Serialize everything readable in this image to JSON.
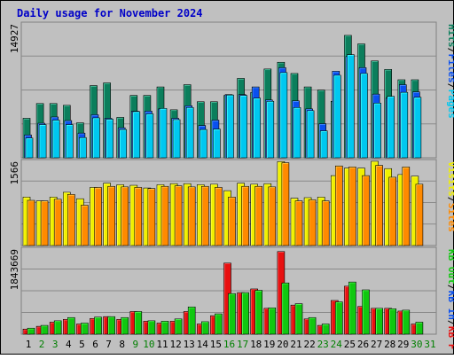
{
  "chart_data": {
    "type": "bar",
    "title": "Daily usage for November 2024",
    "categories": [
      "1",
      "2",
      "3",
      "4",
      "5",
      "6",
      "7",
      "8",
      "9",
      "10",
      "11",
      "12",
      "13",
      "14",
      "15",
      "16",
      "17",
      "18",
      "19",
      "20",
      "21",
      "22",
      "23",
      "24",
      "25",
      "26",
      "27",
      "28",
      "29",
      "30",
      "31"
    ],
    "weekend_days": [
      "2",
      "3",
      "9",
      "10",
      "16",
      "17",
      "23",
      "24",
      "30",
      "31"
    ],
    "panels": [
      {
        "id": "hits-files-pages",
        "max_label": "14927",
        "ymax": 14927,
        "legend": [
          {
            "label": "Pages",
            "color": "#00c8f0"
          },
          {
            "label": "Files",
            "color": "#0a50f0"
          },
          {
            "label": "Hits",
            "color": "#0b7e5c"
          }
        ],
        "series": [
          {
            "name": "Hits",
            "color": "#0b7e5c",
            "values": [
              4400,
              6050,
              6050,
              5850,
              3900,
              8050,
              8350,
              4500,
              6950,
              6950,
              7900,
              5350,
              8150,
              6250,
              6250,
              6950,
              8850,
              7300,
              9900,
              10650,
              9400,
              7900,
              7550,
              6300,
              13650,
              12700,
              10800,
              9850,
              8700,
              8700,
              null
            ]
          },
          {
            "name": "Files",
            "color": "#0a50f0",
            "values": [
              2550,
              3850,
              4550,
              4150,
              2750,
              4800,
              4400,
              3350,
              5200,
              5200,
              5450,
              4400,
              5800,
              3600,
              4200,
              7050,
              7050,
              7900,
              6450,
              10050,
              6350,
              5450,
              3800,
              9650,
              11300,
              10050,
              7100,
              6650,
              8150,
              7350,
              null
            ]
          },
          {
            "name": "Pages",
            "color": "#00c8f0",
            "values": [
              2200,
              3700,
              4200,
              3700,
              2250,
              4450,
              4300,
              3150,
              5150,
              4900,
              5500,
              4250,
              5600,
              3150,
              3200,
              7000,
              6950,
              6650,
              6300,
              9500,
              5600,
              5250,
              3000,
              9200,
              11500,
              9400,
              6100,
              6850,
              7300,
              6750,
              null
            ]
          }
        ]
      },
      {
        "id": "sites-visits",
        "max_label": "1566",
        "ymax": 1566,
        "legend": [
          {
            "label": "Sites",
            "color": "#ff8a00"
          },
          {
            "label": "Visits",
            "color": "#f0f000"
          }
        ],
        "series": [
          {
            "name": "Visits",
            "color": "#f0f000",
            "values": [
              900,
              830,
              900,
              990,
              870,
              1080,
              1160,
              1130,
              1120,
              1070,
              1130,
              1150,
              1150,
              1130,
              1140,
              1020,
              1160,
              1140,
              1150,
              1560,
              880,
              890,
              900,
              1300,
              1440,
              1440,
              1590,
              1430,
              1320,
              1290,
              null
            ]
          },
          {
            "name": "Sites",
            "color": "#ff8a00",
            "values": [
              840,
              830,
              860,
              950,
              750,
              1080,
              1100,
              1090,
              1080,
              1060,
              1100,
              1110,
              1090,
              1100,
              1080,
              900,
              1100,
              1100,
              1090,
              1540,
              830,
              850,
              830,
              1480,
              1460,
              1300,
              1490,
              1270,
              1460,
              1140,
              null
            ]
          }
        ]
      },
      {
        "id": "kb",
        "max_label": "1843669",
        "ymax": 1843669,
        "legend": [
          {
            "label": "KB F",
            "color": "#e81010"
          },
          {
            "label": "KB In",
            "color": "#0a50f0"
          },
          {
            "label": "KB Out",
            "color": "#10c810"
          }
        ],
        "series": [
          {
            "name": "KB F",
            "color": "#e81010",
            "values": [
              110000,
              170000,
              260000,
              320000,
              220000,
              340000,
              380000,
              320000,
              490000,
              280000,
              240000,
              280000,
              490000,
              220000,
              400000,
              1540000,
              900000,
              980000,
              560000,
              1790000,
              630000,
              330000,
              190000,
              730000,
              1040000,
              600000,
              560000,
              560000,
              500000,
              220000,
              null
            ]
          },
          {
            "name": "KB Out",
            "color": "#10c810",
            "values": [
              130000,
              190000,
              290000,
              360000,
              240000,
              370000,
              380000,
              360000,
              490000,
              290000,
              280000,
              330000,
              590000,
              270000,
              440000,
              880000,
              900000,
              950000,
              570000,
              1110000,
              660000,
              360000,
              220000,
              700000,
              1130000,
              960000,
              560000,
              550000,
              520000,
              260000,
              null
            ]
          }
        ]
      }
    ]
  }
}
